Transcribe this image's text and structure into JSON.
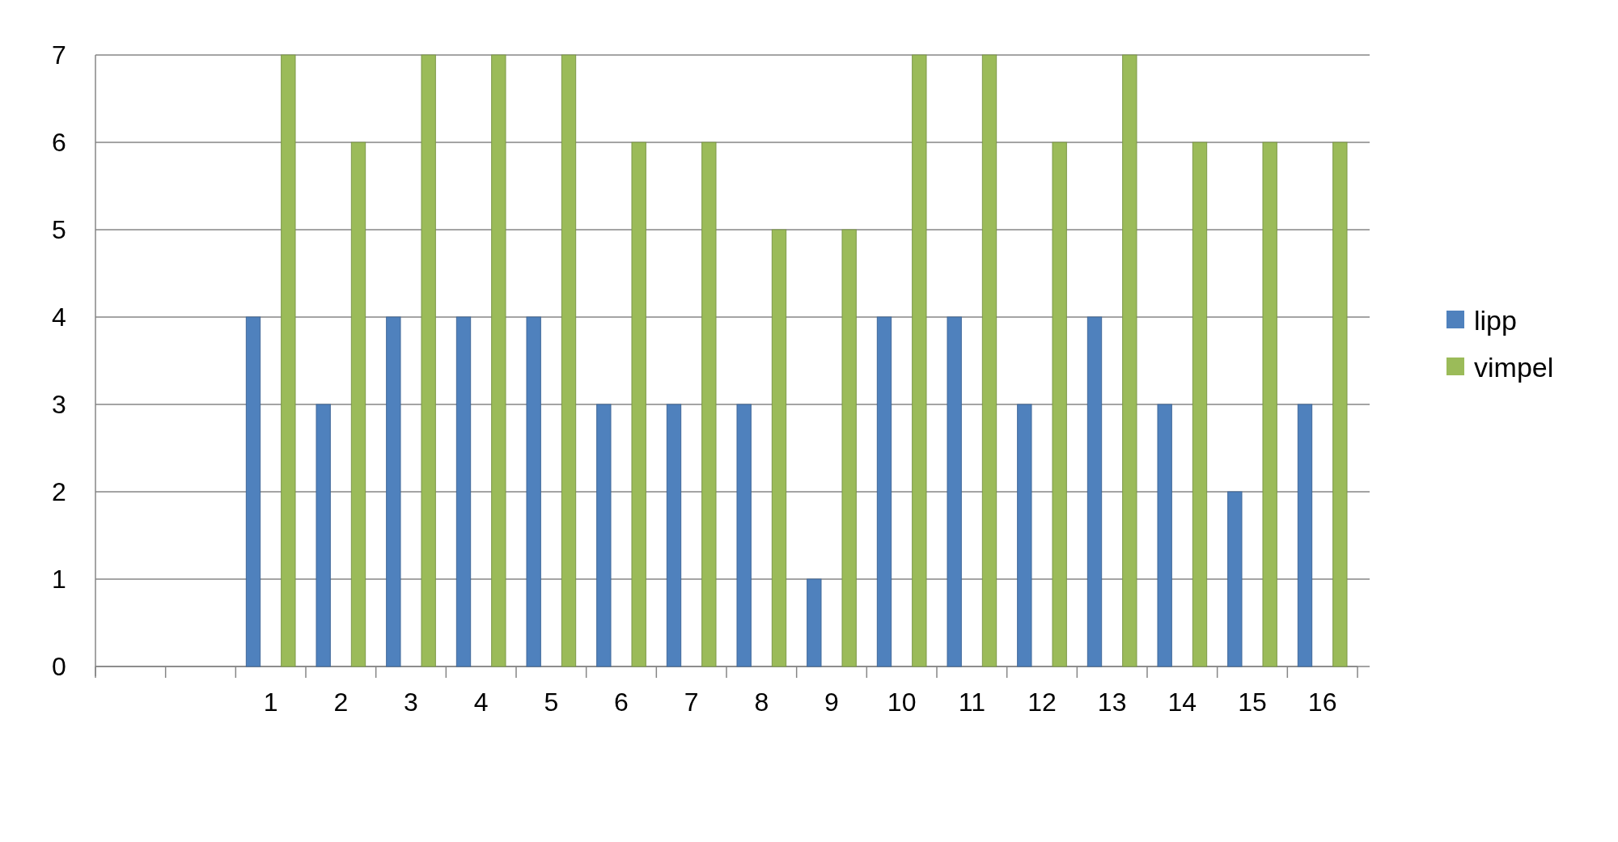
{
  "chart_data": {
    "type": "bar",
    "categories": [
      null,
      null,
      "1",
      "2",
      "3",
      "4",
      "5",
      "6",
      "7",
      "8",
      "9",
      "10",
      "11",
      "12",
      "13",
      "14",
      "15",
      "16"
    ],
    "series": [
      {
        "name": "lipp",
        "color": "#4f81bd",
        "values": [
          null,
          null,
          4,
          3,
          4,
          4,
          4,
          3,
          3,
          3,
          1,
          4,
          4,
          3,
          4,
          3,
          2,
          3
        ]
      },
      {
        "name": "vimpel",
        "color": "#9bbb59",
        "values": [
          null,
          null,
          7,
          6,
          7,
          7,
          7,
          6,
          6,
          5,
          5,
          7,
          7,
          6,
          7,
          6,
          6,
          6
        ]
      }
    ],
    "ylim": [
      0,
      7
    ],
    "yticks": [
      0,
      1,
      2,
      3,
      4,
      5,
      6,
      7
    ],
    "grid": "y",
    "legend": "right"
  }
}
